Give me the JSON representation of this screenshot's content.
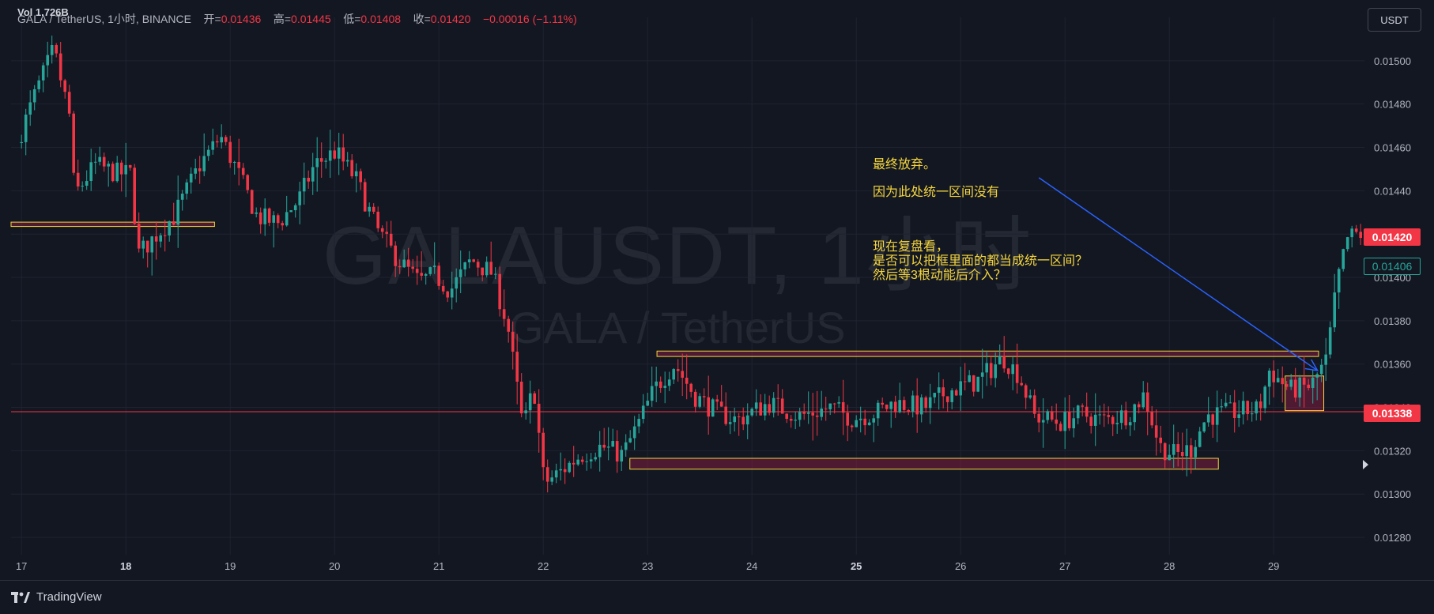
{
  "legend": {
    "volume": "Vol 1.726B",
    "symbol_info": "GALA / TetherUS, 1小时, BINANCE",
    "open_label": "开=",
    "open": "0.01436",
    "high_label": "高=",
    "high": "0.01445",
    "low_label": "低=",
    "low": "0.01408",
    "close_label": "收=",
    "close": "0.01420",
    "change": "−0.00016 (−1.11%)"
  },
  "currency_button": "USDT",
  "watermark": {
    "main": "GALAUSDT, 1小时",
    "sub": "GALA / TetherUS"
  },
  "annotations": {
    "line1": "最终放弃。",
    "line2": "因为此处统一区间没有",
    "line3": "现在复盘看，",
    "line4": "是否可以把框里面的都当成统一区间？",
    "line5": "然后等3根动能后介入？"
  },
  "price_tags": {
    "last": "0.01420",
    "line": "0.01338",
    "prev": "0.01406"
  },
  "footer": {
    "brand": "TradingView"
  },
  "colors": {
    "up": "#26a69a",
    "down": "#f23645",
    "background": "#131722",
    "annotation": "#f5d63d",
    "arrow": "#2962ff"
  },
  "chart_data": {
    "type": "candlestick",
    "interval": "1小时",
    "ylim": [
      0.01272,
      0.0152
    ],
    "y_ticks": [
      "0.01500",
      "0.01480",
      "0.01460",
      "0.01440",
      "0.01420",
      "0.01400",
      "0.01380",
      "0.01360",
      "0.01340",
      "0.01320",
      "0.01300",
      "0.01280"
    ],
    "x_ticks": [
      "17",
      "18",
      "19",
      "20",
      "21",
      "22",
      "23",
      "24",
      "25",
      "26",
      "27",
      "28",
      "29"
    ],
    "anchors": [
      [
        17.0,
        0.01462
      ],
      [
        17.2,
        0.01488
      ],
      [
        17.35,
        0.01505
      ],
      [
        17.5,
        0.01475
      ],
      [
        17.55,
        0.01438
      ],
      [
        17.75,
        0.01452
      ],
      [
        17.95,
        0.01448
      ],
      [
        18.1,
        0.01448
      ],
      [
        18.15,
        0.0141
      ],
      [
        18.3,
        0.01418
      ],
      [
        18.5,
        0.01428
      ],
      [
        18.75,
        0.01452
      ],
      [
        18.95,
        0.01465
      ],
      [
        19.1,
        0.0145
      ],
      [
        19.3,
        0.01428
      ],
      [
        19.5,
        0.01425
      ],
      [
        19.7,
        0.01436
      ],
      [
        19.85,
        0.01452
      ],
      [
        20.05,
        0.01458
      ],
      [
        20.25,
        0.01445
      ],
      [
        20.45,
        0.01422
      ],
      [
        20.65,
        0.01408
      ],
      [
        20.85,
        0.01398
      ],
      [
        21.0,
        0.01401
      ],
      [
        21.15,
        0.01394
      ],
      [
        21.35,
        0.01408
      ],
      [
        21.55,
        0.01402
      ],
      [
        21.7,
        0.01378
      ],
      [
        21.85,
        0.0133
      ],
      [
        21.95,
        0.0135
      ],
      [
        22.05,
        0.01305
      ],
      [
        22.2,
        0.0131
      ],
      [
        22.4,
        0.01318
      ],
      [
        22.6,
        0.01322
      ],
      [
        22.8,
        0.01318
      ],
      [
        22.95,
        0.01332
      ],
      [
        23.1,
        0.01348
      ],
      [
        23.3,
        0.0136
      ],
      [
        23.5,
        0.01345
      ],
      [
        23.7,
        0.01338
      ],
      [
        23.9,
        0.01334
      ],
      [
        24.2,
        0.01342
      ],
      [
        24.5,
        0.01336
      ],
      [
        24.8,
        0.0134
      ],
      [
        25.0,
        0.01335
      ],
      [
        25.2,
        0.01337
      ],
      [
        25.4,
        0.01342
      ],
      [
        25.7,
        0.0134
      ],
      [
        25.9,
        0.01347
      ],
      [
        26.2,
        0.01352
      ],
      [
        26.45,
        0.01363
      ],
      [
        26.6,
        0.01355
      ],
      [
        26.75,
        0.01336
      ],
      [
        27.0,
        0.01333
      ],
      [
        27.2,
        0.01337
      ],
      [
        27.4,
        0.01334
      ],
      [
        27.65,
        0.01337
      ],
      [
        27.8,
        0.01346
      ],
      [
        27.95,
        0.01322
      ],
      [
        28.1,
        0.01318
      ],
      [
        28.25,
        0.01321
      ],
      [
        28.4,
        0.01336
      ],
      [
        28.7,
        0.01338
      ],
      [
        28.9,
        0.01339
      ],
      [
        29.0,
        0.01357
      ],
      [
        29.2,
        0.01348
      ],
      [
        29.4,
        0.0135
      ],
      [
        29.55,
        0.01362
      ],
      [
        29.65,
        0.01398
      ],
      [
        29.75,
        0.01418
      ],
      [
        29.85,
        0.0142
      ]
    ],
    "horizontal_lines": [
      {
        "price": 0.01338,
        "color": "#f23645",
        "from_day": 16.9,
        "to_day": 29.9
      }
    ],
    "zones": [
      {
        "from_day": 16.9,
        "to_day": 18.85,
        "top": 0.014255,
        "bottom": 0.014235,
        "color": "#f5d63d"
      },
      {
        "from_day": 23.09,
        "to_day": 29.43,
        "top": 0.01366,
        "bottom": 0.013635,
        "color": "#f5d63d"
      },
      {
        "from_day": 22.83,
        "to_day": 28.47,
        "top": 0.013165,
        "bottom": 0.013115,
        "color": "#f5d63d"
      },
      {
        "from_day": 29.11,
        "to_day": 29.48,
        "top": 0.013545,
        "bottom": 0.013385,
        "color": "#f5d63d"
      }
    ],
    "arrow": {
      "from": [
        26.75,
        0.01446
      ],
      "to": [
        29.42,
        0.01357
      ]
    }
  }
}
